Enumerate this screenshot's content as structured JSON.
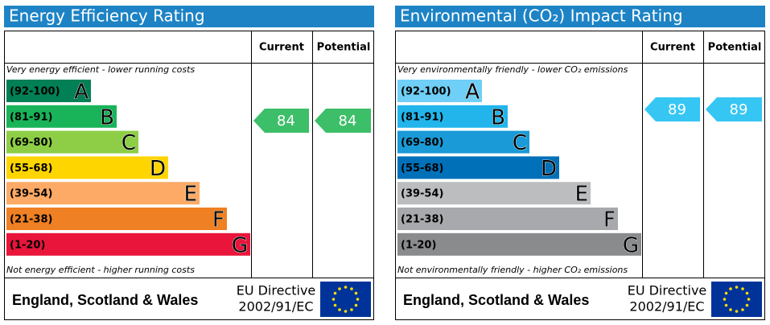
{
  "panels": [
    {
      "title": "Energy Efficiency Rating",
      "header": {
        "current": "Current",
        "potential": "Potential"
      },
      "top_note": "Very energy efficient - lower running costs",
      "bottom_note": "Not energy efficient - higher running costs",
      "bands": [
        {
          "range": "(92-100)",
          "letter": "A",
          "color": "#008054"
        },
        {
          "range": "(81-91)",
          "letter": "B",
          "color": "#19b459"
        },
        {
          "range": "(69-80)",
          "letter": "C",
          "color": "#8dce46"
        },
        {
          "range": "(55-68)",
          "letter": "D",
          "color": "#ffd500"
        },
        {
          "range": "(39-54)",
          "letter": "E",
          "color": "#fcaa65"
        },
        {
          "range": "(21-38)",
          "letter": "F",
          "color": "#ef8023"
        },
        {
          "range": "(1-20)",
          "letter": "G",
          "color": "#e9153b"
        }
      ],
      "current": 84,
      "potential": 84,
      "arrow_color": "#3dbe68",
      "footer": {
        "region": "England, Scotland & Wales",
        "directive": [
          "EU Directive",
          "2002/91/EC"
        ]
      }
    },
    {
      "title": "Environmental (CO₂) Impact Rating",
      "header": {
        "current": "Current",
        "potential": "Potential"
      },
      "top_note": "Very environmentally friendly - lower CO₂ emissions",
      "bottom_note": "Not environmentally friendly - higher CO₂ emissions",
      "bands": [
        {
          "range": "(92-100)",
          "letter": "A",
          "color": "#6fcff6"
        },
        {
          "range": "(81-91)",
          "letter": "B",
          "color": "#22b5eb"
        },
        {
          "range": "(69-80)",
          "letter": "C",
          "color": "#1a9ad6"
        },
        {
          "range": "(55-68)",
          "letter": "D",
          "color": "#0070b8"
        },
        {
          "range": "(39-54)",
          "letter": "E",
          "color": "#bbbdbf"
        },
        {
          "range": "(21-38)",
          "letter": "F",
          "color": "#a7a9ac"
        },
        {
          "range": "(1-20)",
          "letter": "G",
          "color": "#8a8b8d"
        }
      ],
      "current": 89,
      "potential": 89,
      "arrow_color": "#36c6f4",
      "footer": {
        "region": "England, Scotland & Wales",
        "directive": [
          "EU Directive",
          "2002/91/EC"
        ]
      }
    }
  ]
}
